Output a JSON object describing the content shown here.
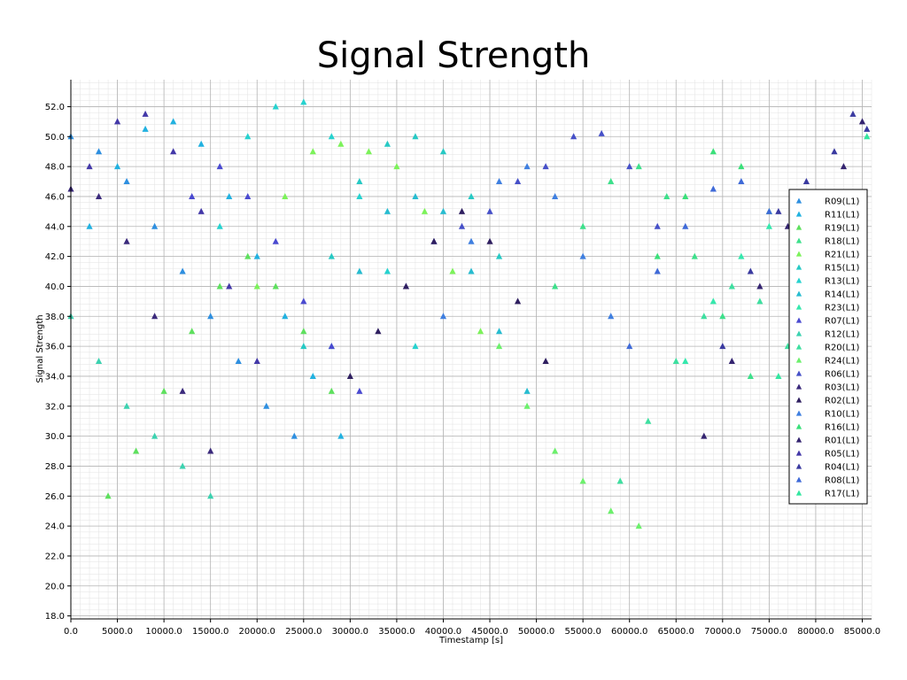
{
  "chart_data": {
    "type": "scatter",
    "title": "Signal Strength",
    "xlabel": "Timestamp [s]",
    "ylabel": "Signal Strength",
    "xlim": [
      0,
      86000
    ],
    "ylim": [
      17.8,
      53.8
    ],
    "xticks": [
      0,
      5000,
      10000,
      15000,
      20000,
      25000,
      30000,
      35000,
      40000,
      45000,
      50000,
      55000,
      60000,
      65000,
      70000,
      75000,
      80000,
      85000
    ],
    "xtick_labels": [
      "0.0",
      "5000.0",
      "10000.0",
      "15000.0",
      "20000.0",
      "25000.0",
      "30000.0",
      "35000.0",
      "40000.0",
      "45000.0",
      "50000.0",
      "55000.0",
      "60000.0",
      "65000.0",
      "70000.0",
      "75000.0",
      "80000.0",
      "85000.0"
    ],
    "yticks": [
      18,
      20,
      22,
      24,
      26,
      28,
      30,
      32,
      34,
      36,
      38,
      40,
      42,
      44,
      46,
      48,
      50,
      52
    ],
    "ytick_labels": [
      "18.0",
      "20.0",
      "22.0",
      "24.0",
      "26.0",
      "28.0",
      "30.0",
      "32.0",
      "34.0",
      "36.0",
      "38.0",
      "40.0",
      "42.0",
      "44.0",
      "46.0",
      "48.0",
      "50.0",
      "52.0"
    ],
    "grid": true,
    "marker": "triangle-up",
    "legend_position": "right",
    "series": [
      {
        "name": "R09(L1)",
        "color": "#2e8fe0",
        "points": [
          [
            0,
            50
          ],
          [
            3000,
            49
          ],
          [
            6000,
            47
          ],
          [
            9000,
            44
          ],
          [
            12000,
            41
          ],
          [
            15000,
            38
          ],
          [
            18000,
            35
          ],
          [
            21000,
            32
          ],
          [
            24000,
            30
          ]
        ]
      },
      {
        "name": "R11(L1)",
        "color": "#21b1e0",
        "points": [
          [
            2000,
            44
          ],
          [
            5000,
            48
          ],
          [
            8000,
            50.5
          ],
          [
            11000,
            51
          ],
          [
            14000,
            49.5
          ],
          [
            17000,
            46
          ],
          [
            20000,
            42
          ],
          [
            23000,
            38
          ],
          [
            26000,
            34
          ],
          [
            29000,
            30
          ]
        ]
      },
      {
        "name": "R19(L1)",
        "color": "#5ee05e",
        "points": [
          [
            4000,
            26
          ],
          [
            7000,
            29
          ],
          [
            10000,
            33
          ],
          [
            13000,
            37
          ],
          [
            16000,
            40
          ],
          [
            19000,
            42
          ],
          [
            22000,
            40
          ],
          [
            25000,
            37
          ],
          [
            28000,
            33
          ]
        ]
      },
      {
        "name": "R18(L1)",
        "color": "#3de08b",
        "points": [
          [
            52000,
            40
          ],
          [
            55000,
            44
          ],
          [
            58000,
            47
          ],
          [
            61000,
            48
          ],
          [
            64000,
            46
          ],
          [
            67000,
            42
          ],
          [
            70000,
            38
          ],
          [
            73000,
            34
          ]
        ]
      },
      {
        "name": "R21(L1)",
        "color": "#7cf25a",
        "points": [
          [
            20000,
            40
          ],
          [
            23000,
            46
          ],
          [
            26000,
            49
          ],
          [
            29000,
            49.5
          ],
          [
            32000,
            49
          ],
          [
            35000,
            48
          ],
          [
            38000,
            45
          ],
          [
            41000,
            41
          ],
          [
            44000,
            37
          ]
        ]
      },
      {
        "name": "R15(L1)",
        "color": "#26c9c4",
        "points": [
          [
            25000,
            36
          ],
          [
            28000,
            42
          ],
          [
            31000,
            47
          ],
          [
            34000,
            49.5
          ],
          [
            37000,
            50
          ],
          [
            40000,
            49
          ],
          [
            43000,
            46
          ],
          [
            46000,
            42
          ]
        ]
      },
      {
        "name": "R13(L1)",
        "color": "#26d2cf",
        "points": [
          [
            16000,
            44
          ],
          [
            19000,
            50
          ],
          [
            22000,
            52
          ],
          [
            25000,
            52.3
          ],
          [
            28000,
            50
          ],
          [
            31000,
            46
          ],
          [
            34000,
            41
          ],
          [
            37000,
            36
          ]
        ]
      },
      {
        "name": "R14(L1)",
        "color": "#27bcd0",
        "points": [
          [
            28000,
            36
          ],
          [
            31000,
            41
          ],
          [
            34000,
            45
          ],
          [
            37000,
            46
          ],
          [
            40000,
            45
          ],
          [
            43000,
            41
          ],
          [
            46000,
            37
          ],
          [
            49000,
            33
          ]
        ]
      },
      {
        "name": "R23(L1)",
        "color": "#35e8ad",
        "points": [
          [
            66000,
            35
          ],
          [
            69000,
            39
          ],
          [
            72000,
            42
          ],
          [
            75000,
            44
          ],
          [
            78000,
            45
          ],
          [
            81000,
            46
          ],
          [
            84000,
            44
          ]
        ]
      },
      {
        "name": "R07(L1)",
        "color": "#4a4ad0",
        "points": [
          [
            13000,
            46
          ],
          [
            16000,
            48
          ],
          [
            19000,
            46
          ],
          [
            22000,
            43
          ],
          [
            25000,
            39
          ],
          [
            28000,
            36
          ],
          [
            31000,
            33
          ]
        ]
      },
      {
        "name": "R12(L1)",
        "color": "#3cd2b0",
        "points": [
          [
            0,
            38
          ],
          [
            3000,
            35
          ],
          [
            6000,
            32
          ],
          [
            9000,
            30
          ],
          [
            12000,
            28
          ],
          [
            15000,
            26
          ]
        ]
      },
      {
        "name": "R20(L1)",
        "color": "#3edfa0",
        "points": [
          [
            59000,
            27
          ],
          [
            62000,
            31
          ],
          [
            65000,
            35
          ],
          [
            68000,
            38
          ],
          [
            71000,
            40
          ],
          [
            74000,
            39
          ],
          [
            77000,
            36
          ]
        ]
      },
      {
        "name": "R24(L1)",
        "color": "#6cf06c",
        "points": [
          [
            46000,
            36
          ],
          [
            49000,
            32
          ],
          [
            52000,
            29
          ],
          [
            55000,
            27
          ],
          [
            58000,
            25
          ],
          [
            61000,
            24
          ]
        ]
      },
      {
        "name": "R06(L1)",
        "color": "#4650c8",
        "points": [
          [
            36000,
            40
          ],
          [
            39000,
            43
          ],
          [
            42000,
            44
          ],
          [
            45000,
            45
          ],
          [
            48000,
            47
          ],
          [
            51000,
            48
          ],
          [
            54000,
            50
          ],
          [
            57000,
            50.2
          ],
          [
            60000,
            48
          ],
          [
            63000,
            44
          ]
        ]
      },
      {
        "name": "R03(L1)",
        "color": "#3b2a7c",
        "points": [
          [
            0,
            46.5
          ],
          [
            3000,
            46
          ],
          [
            6000,
            43
          ],
          [
            9000,
            38
          ],
          [
            12000,
            33
          ],
          [
            15000,
            29
          ]
        ]
      },
      {
        "name": "R02(L1)",
        "color": "#2f1f60",
        "points": [
          [
            30000,
            34
          ],
          [
            33000,
            37
          ],
          [
            36000,
            40
          ],
          [
            39000,
            43
          ],
          [
            42000,
            45
          ],
          [
            45000,
            43
          ],
          [
            48000,
            39
          ],
          [
            51000,
            35
          ]
        ]
      },
      {
        "name": "R10(L1)",
        "color": "#3f7fe0",
        "points": [
          [
            40000,
            38
          ],
          [
            43000,
            43
          ],
          [
            46000,
            47
          ],
          [
            49000,
            48
          ],
          [
            52000,
            46
          ],
          [
            55000,
            42
          ],
          [
            58000,
            38
          ]
        ]
      },
      {
        "name": "R16(L1)",
        "color": "#3ae07a",
        "points": [
          [
            63000,
            42
          ],
          [
            66000,
            46
          ],
          [
            69000,
            49
          ],
          [
            72000,
            48
          ],
          [
            75000,
            45
          ],
          [
            78000,
            41
          ]
        ]
      },
      {
        "name": "R01(L1)",
        "color": "#342470",
        "points": [
          [
            68000,
            30
          ],
          [
            71000,
            35
          ],
          [
            74000,
            40
          ],
          [
            77000,
            44
          ],
          [
            80000,
            46
          ],
          [
            83000,
            48
          ],
          [
            85000,
            51
          ]
        ]
      },
      {
        "name": "R05(L1)",
        "color": "#4338a8",
        "points": [
          [
            2000,
            48
          ],
          [
            5000,
            51
          ],
          [
            8000,
            51.5
          ],
          [
            11000,
            49
          ],
          [
            14000,
            45
          ],
          [
            17000,
            40
          ],
          [
            20000,
            35
          ]
        ]
      },
      {
        "name": "R04(L1)",
        "color": "#3a3aa0",
        "points": [
          [
            70000,
            36
          ],
          [
            73000,
            41
          ],
          [
            76000,
            45
          ],
          [
            79000,
            47
          ],
          [
            82000,
            49
          ],
          [
            84000,
            51.5
          ],
          [
            85500,
            50.5
          ]
        ]
      },
      {
        "name": "R08(L1)",
        "color": "#3f6ad8",
        "points": [
          [
            60000,
            36
          ],
          [
            63000,
            41
          ],
          [
            66000,
            44
          ],
          [
            69000,
            46.5
          ],
          [
            72000,
            47
          ],
          [
            75000,
            45
          ],
          [
            78000,
            42
          ]
        ]
      },
      {
        "name": "R17(L1)",
        "color": "#33e6a0",
        "points": [
          [
            76000,
            34
          ],
          [
            79000,
            38
          ],
          [
            82000,
            42
          ],
          [
            84000,
            46
          ],
          [
            85500,
            50
          ]
        ]
      }
    ]
  }
}
